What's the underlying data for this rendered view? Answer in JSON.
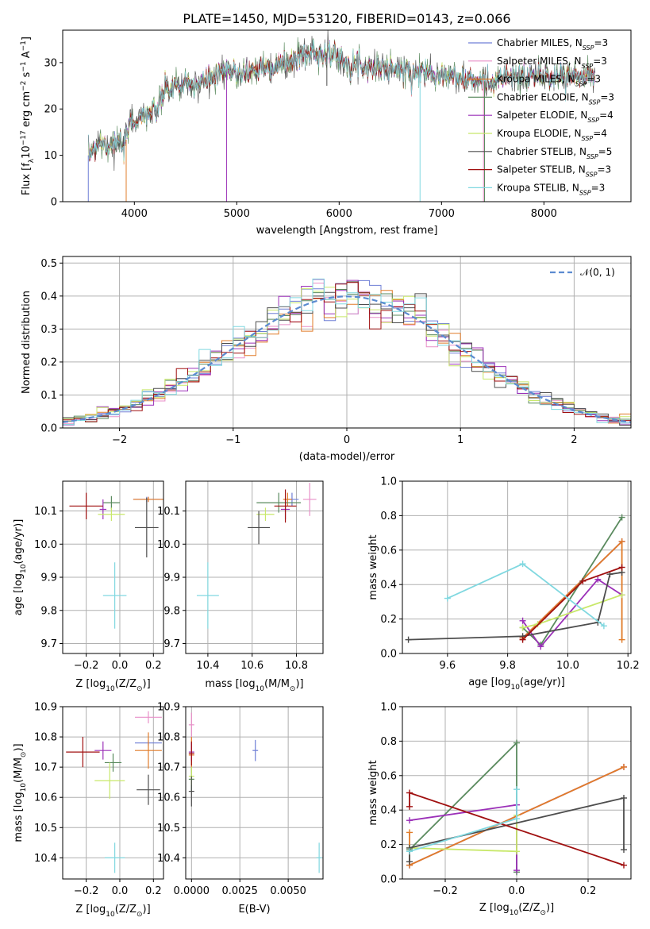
{
  "title": "PLATE=1450, MJD=53120, FIBERID=0143, z=0.066",
  "colors": {
    "Chabrier MILES": "#6f7fd6",
    "Salpeter MILES": "#e88fc8",
    "Kroupa MILES": "#e07b28",
    "Chabrier ELODIE": "#5a8a5e",
    "Salpeter ELODIE": "#9b30b8",
    "Kroupa ELODIE": "#c8e86a",
    "Chabrier STELIB": "#4d4d4d",
    "Salpeter STELIB": "#a01010",
    "Kroupa STELIB": "#80d8e0"
  },
  "chart_data": [
    {
      "id": "spectrum",
      "type": "line",
      "xlabel": "wavelength [Angstrom, rest frame]",
      "ylabel": "Flux [f_λ10^-17 erg cm^-2 s^-1 A^-1]",
      "xlim": [
        3300,
        8850
      ],
      "ylim": [
        0,
        37
      ],
      "xticks": [
        4000,
        5000,
        6000,
        7000,
        8000
      ],
      "yticks": [
        0,
        10,
        20,
        30
      ],
      "grid": false,
      "legend_position": "top-right",
      "legend": [
        {
          "name": "Chabrier MILES",
          "sub": "SSP",
          "n": 3
        },
        {
          "name": "Salpeter MILES",
          "sub": "SSP",
          "n": 3
        },
        {
          "name": "Kroupa MILES",
          "sub": "SSP",
          "n": 3
        },
        {
          "name": "Chabrier ELODIE",
          "sub": "SSP",
          "n": 3
        },
        {
          "name": "Salpeter ELODIE",
          "sub": "SSP",
          "n": 4
        },
        {
          "name": "Kroupa ELODIE",
          "sub": "SSP",
          "n": 4
        },
        {
          "name": "Chabrier STELIB",
          "sub": "SSP",
          "n": 5
        },
        {
          "name": "Salpeter STELIB",
          "sub": "SSP",
          "n": 3
        },
        {
          "name": "Kroupa STELIB",
          "sub": "SSP",
          "n": 3
        }
      ],
      "continuum": {
        "x": [
          3550,
          3650,
          3750,
          3850,
          3900,
          3950,
          4000,
          4100,
          4200,
          4300,
          4400,
          4500,
          4700,
          4900,
          5100,
          5300,
          5500,
          5700,
          5900,
          6100,
          6300,
          6500,
          6700,
          6900,
          7100,
          7300,
          7500,
          7700,
          7900,
          8100,
          8300,
          8500
        ],
        "y": [
          10,
          13,
          12,
          13,
          11,
          17,
          17,
          19,
          19,
          24,
          25,
          25,
          26,
          28,
          28,
          29,
          30,
          32,
          32,
          30,
          29,
          29,
          28,
          28,
          27,
          26,
          26,
          27,
          27,
          27,
          27,
          27
        ]
      },
      "dips": [
        {
          "x": 3550,
          "to": 0
        },
        {
          "x": 3920,
          "to": 0
        },
        {
          "x": 4900,
          "to": 0
        },
        {
          "x": 5880,
          "to": 25
        },
        {
          "x": 6790,
          "to": 0
        },
        {
          "x": 7410,
          "to": 0
        },
        {
          "x": 7420,
          "to": 0
        }
      ]
    },
    {
      "id": "residuals",
      "type": "histogram",
      "xlabel": "(data-model)/error",
      "ylabel": "Normed distribution",
      "xlim": [
        -2.5,
        2.5
      ],
      "ylim": [
        0,
        0.52
      ],
      "xticks": [
        -2,
        -1,
        0,
        1,
        2
      ],
      "yticks": [
        0.0,
        0.1,
        0.2,
        0.3,
        0.4,
        0.5
      ],
      "grid": true,
      "legend_position": "top-right",
      "legend": [
        {
          "name": "𝒩(0, 1)"
        }
      ],
      "bin_width": 0.1,
      "normal_curve": {
        "mean": 0,
        "sigma": 1
      }
    },
    {
      "id": "age-vs-Z",
      "type": "scatter",
      "xlabel": "Z [log10(Z/Z⊙)]",
      "ylabel": "age [log10(age/yr)]",
      "xlim": [
        -0.34,
        0.26
      ],
      "ylim": [
        9.67,
        10.19
      ],
      "xticks": [
        -0.2,
        0.0,
        0.2
      ],
      "yticks": [
        9.7,
        9.8,
        9.9,
        10.0,
        10.1
      ],
      "grid": true,
      "points": [
        {
          "series": "Chabrier MILES",
          "x": 0.16,
          "y": 10.135,
          "xerr": 0.08,
          "yerr": 0.0
        },
        {
          "series": "Salpeter MILES",
          "x": 0.17,
          "y": 10.135,
          "xerr": 0.09,
          "yerr": 0.0
        },
        {
          "series": "Kroupa MILES",
          "x": 0.17,
          "y": 10.135,
          "xerr": 0.09,
          "yerr": 0.0
        },
        {
          "series": "Chabrier ELODIE",
          "x": -0.05,
          "y": 10.125,
          "xerr": 0.05,
          "yerr": 0.02
        },
        {
          "series": "Salpeter ELODIE",
          "x": -0.1,
          "y": 10.105,
          "xerr": 0.02,
          "yerr": 0.03
        },
        {
          "series": "Kroupa ELODIE",
          "x": -0.05,
          "y": 10.09,
          "xerr": 0.08,
          "yerr": 0.02
        },
        {
          "series": "Chabrier STELIB",
          "x": 0.16,
          "y": 10.05,
          "xerr": 0.07,
          "yerr": 0.09
        },
        {
          "series": "Salpeter STELIB",
          "x": -0.2,
          "y": 10.115,
          "xerr": 0.1,
          "yerr": 0.04
        },
        {
          "series": "Kroupa STELIB",
          "x": -0.03,
          "y": 9.845,
          "xerr": 0.07,
          "yerr": 0.1
        }
      ]
    },
    {
      "id": "age-vs-mass",
      "type": "scatter",
      "xlabel": "mass [log10(M/M⊙)]",
      "ylabel": "",
      "xlim": [
        10.3,
        10.92
      ],
      "ylim": [
        9.67,
        10.19
      ],
      "xticks": [
        10.4,
        10.6,
        10.8
      ],
      "yticks": [
        9.7,
        9.8,
        9.9,
        10.0,
        10.1
      ],
      "grid": true,
      "points": [
        {
          "series": "Chabrier MILES",
          "x": 10.78,
          "y": 10.135,
          "xerr": 0.03,
          "yerr": 0.02
        },
        {
          "series": "Salpeter MILES",
          "x": 10.86,
          "y": 10.135,
          "xerr": 0.03,
          "yerr": 0.05
        },
        {
          "series": "Kroupa MILES",
          "x": 10.76,
          "y": 10.135,
          "xerr": 0.02,
          "yerr": 0.02
        },
        {
          "series": "Chabrier ELODIE",
          "x": 10.72,
          "y": 10.125,
          "xerr": 0.1,
          "yerr": 0.03
        },
        {
          "series": "Salpeter ELODIE",
          "x": 10.75,
          "y": 10.105,
          "xerr": 0.02,
          "yerr": 0.03
        },
        {
          "series": "Kroupa ELODIE",
          "x": 10.66,
          "y": 10.09,
          "xerr": 0.04,
          "yerr": 0.02
        },
        {
          "series": "Chabrier STELIB",
          "x": 10.63,
          "y": 10.05,
          "xerr": 0.05,
          "yerr": 0.05
        },
        {
          "series": "Salpeter STELIB",
          "x": 10.75,
          "y": 10.115,
          "xerr": 0.05,
          "yerr": 0.05
        },
        {
          "series": "Kroupa STELIB",
          "x": 10.4,
          "y": 9.845,
          "xerr": 0.05,
          "yerr": 0.1
        }
      ]
    },
    {
      "id": "weight-vs-age",
      "type": "line",
      "xlabel": "age [log10(age/yr)]",
      "ylabel": "mass weight",
      "xlim": [
        9.45,
        10.21
      ],
      "ylim": [
        0,
        1.0
      ],
      "xticks": [
        9.6,
        9.8,
        10.0,
        10.2
      ],
      "yticks": [
        0.0,
        0.2,
        0.4,
        0.6,
        0.8,
        1.0
      ],
      "grid": true,
      "series": [
        {
          "name": "Chabrier MILES",
          "x": [
            9.85,
            10.18
          ],
          "y": [
            0.09,
            0.65
          ]
        },
        {
          "name": "Salpeter MILES",
          "x": [
            9.85,
            10.18
          ],
          "y": [
            0.09,
            0.65
          ]
        },
        {
          "name": "Kroupa MILES",
          "x": [
            9.85,
            10.18,
            10.18
          ],
          "y": [
            0.09,
            0.65,
            0.08
          ]
        },
        {
          "name": "Chabrier ELODIE",
          "x": [
            9.85,
            9.91,
            10.18
          ],
          "y": [
            0.15,
            0.05,
            0.79
          ]
        },
        {
          "name": "Salpeter ELODIE",
          "x": [
            9.85,
            9.91,
            10.1,
            10.18
          ],
          "y": [
            0.19,
            0.04,
            0.43,
            0.34
          ]
        },
        {
          "name": "Kroupa ELODIE",
          "x": [
            9.85,
            9.9,
            10.18
          ],
          "y": [
            0.15,
            0.17,
            0.34
          ]
        },
        {
          "name": "Chabrier STELIB",
          "x": [
            9.47,
            9.85,
            10.1,
            10.14,
            10.18
          ],
          "y": [
            0.08,
            0.1,
            0.18,
            0.46,
            0.47
          ]
        },
        {
          "name": "Salpeter STELIB",
          "x": [
            9.85,
            10.05,
            10.18
          ],
          "y": [
            0.08,
            0.42,
            0.5
          ]
        },
        {
          "name": "Kroupa STELIB",
          "x": [
            9.6,
            9.85,
            10.12
          ],
          "y": [
            0.32,
            0.52,
            0.16
          ]
        }
      ]
    },
    {
      "id": "mass-vs-Z",
      "type": "scatter",
      "xlabel": "Z [log10(Z/Z⊙)]",
      "ylabel": "mass [log10(M/M⊙)]",
      "xlim": [
        -0.34,
        0.26
      ],
      "ylim": [
        10.33,
        10.9
      ],
      "xticks": [
        -0.2,
        0.0,
        0.2
      ],
      "yticks": [
        10.4,
        10.5,
        10.6,
        10.7,
        10.8,
        10.9
      ],
      "grid": true,
      "points": [
        {
          "series": "Chabrier MILES",
          "x": 0.17,
          "y": 10.78,
          "xerr": 0.08,
          "yerr": 0.0
        },
        {
          "series": "Salpeter MILES",
          "x": 0.17,
          "y": 10.865,
          "xerr": 0.08,
          "yerr": 0.02
        },
        {
          "series": "Kroupa MILES",
          "x": 0.17,
          "y": 10.755,
          "xerr": 0.08,
          "yerr": 0.06
        },
        {
          "series": "Chabrier ELODIE",
          "x": -0.04,
          "y": 10.715,
          "xerr": 0.05,
          "yerr": 0.03
        },
        {
          "series": "Salpeter ELODIE",
          "x": -0.1,
          "y": 10.755,
          "xerr": 0.05,
          "yerr": 0.03
        },
        {
          "series": "Kroupa ELODIE",
          "x": -0.06,
          "y": 10.655,
          "xerr": 0.09,
          "yerr": 0.06
        },
        {
          "series": "Chabrier STELIB",
          "x": 0.17,
          "y": 10.625,
          "xerr": 0.07,
          "yerr": 0.05
        },
        {
          "series": "Salpeter STELIB",
          "x": -0.22,
          "y": 10.75,
          "xerr": 0.1,
          "yerr": 0.05
        },
        {
          "series": "Kroupa STELIB",
          "x": -0.03,
          "y": 10.4,
          "xerr": 0.06,
          "yerr": 0.05
        }
      ]
    },
    {
      "id": "mass-vs-EBV",
      "type": "scatter",
      "xlabel": "E(B-V)",
      "ylabel": "",
      "xlim": [
        -0.0003,
        0.0068
      ],
      "ylim": [
        10.33,
        10.9
      ],
      "xticks": [
        0.0,
        0.0025,
        0.005
      ],
      "xtick_labels": [
        "0.0000",
        "0.0025",
        "0.0050"
      ],
      "yticks": [
        10.4,
        10.5,
        10.6,
        10.7,
        10.8,
        10.9
      ],
      "grid": true,
      "points": [
        {
          "series": "Chabrier MILES",
          "x": 0.0033,
          "y": 10.755,
          "xerr": 0.0,
          "yerr": 0.035
        },
        {
          "series": "Salpeter MILES",
          "x": 0.0,
          "y": 10.84,
          "xerr": 0.0,
          "yerr": 0.04
        },
        {
          "series": "Kroupa MILES",
          "x": 0.0,
          "y": 10.74,
          "xerr": 0.0,
          "yerr": 0.06
        },
        {
          "series": "Chabrier ELODIE",
          "x": 0.0,
          "y": 10.66,
          "xerr": 0.0,
          "yerr": 0.04
        },
        {
          "series": "Salpeter ELODIE",
          "x": 0.0,
          "y": 10.75,
          "xerr": 0.0,
          "yerr": 0.03
        },
        {
          "series": "Kroupa ELODIE",
          "x": 0.0,
          "y": 10.67,
          "xerr": 0.0,
          "yerr": 0.03
        },
        {
          "series": "Chabrier STELIB",
          "x": 0.0,
          "y": 10.62,
          "xerr": 0.0,
          "yerr": 0.05
        },
        {
          "series": "Salpeter STELIB",
          "x": 0.0,
          "y": 10.745,
          "xerr": 0.0,
          "yerr": 0.04
        },
        {
          "series": "Kroupa STELIB",
          "x": 0.0066,
          "y": 10.4,
          "xerr": 0.0,
          "yerr": 0.05
        }
      ]
    },
    {
      "id": "weight-vs-Z",
      "type": "line",
      "xlabel": "Z [log10(Z/Z⊙)]",
      "ylabel": "mass weight",
      "xlim": [
        -0.32,
        0.32
      ],
      "ylim": [
        0,
        1.0
      ],
      "xticks": [
        -0.2,
        0.0,
        0.2
      ],
      "yticks": [
        0.0,
        0.2,
        0.4,
        0.6,
        0.8,
        1.0
      ],
      "grid": true,
      "series": [
        {
          "name": "Chabrier MILES",
          "x": [
            -0.3,
            0.3
          ],
          "y": [
            0.08,
            0.65
          ]
        },
        {
          "name": "Salpeter MILES",
          "x": [
            -0.3,
            0.3
          ],
          "y": [
            0.08,
            0.65
          ]
        },
        {
          "name": "Kroupa MILES",
          "x": [
            -0.3,
            -0.3,
            0.3
          ],
          "y": [
            0.27,
            0.08,
            0.65
          ]
        },
        {
          "name": "Chabrier ELODIE",
          "x": [
            -0.3,
            0.0,
            0.0
          ],
          "y": [
            0.17,
            0.79,
            0.04
          ]
        },
        {
          "name": "Salpeter ELODIE",
          "x": [
            -0.3,
            0.0,
            0.0
          ],
          "y": [
            0.34,
            0.43,
            0.05
          ]
        },
        {
          "name": "Kroupa ELODIE",
          "x": [
            -0.3,
            0.0,
            0.0
          ],
          "y": [
            0.18,
            0.16,
            0.37
          ]
        },
        {
          "name": "Chabrier STELIB",
          "x": [
            -0.3,
            -0.3,
            0.3,
            0.3
          ],
          "y": [
            0.1,
            0.18,
            0.47,
            0.17
          ]
        },
        {
          "name": "Salpeter STELIB",
          "x": [
            -0.3,
            -0.3,
            0.3
          ],
          "y": [
            0.42,
            0.5,
            0.08
          ]
        },
        {
          "name": "Kroupa STELIB",
          "x": [
            -0.3,
            0.0,
            0.0
          ],
          "y": [
            0.16,
            0.35,
            0.52
          ]
        }
      ]
    }
  ]
}
